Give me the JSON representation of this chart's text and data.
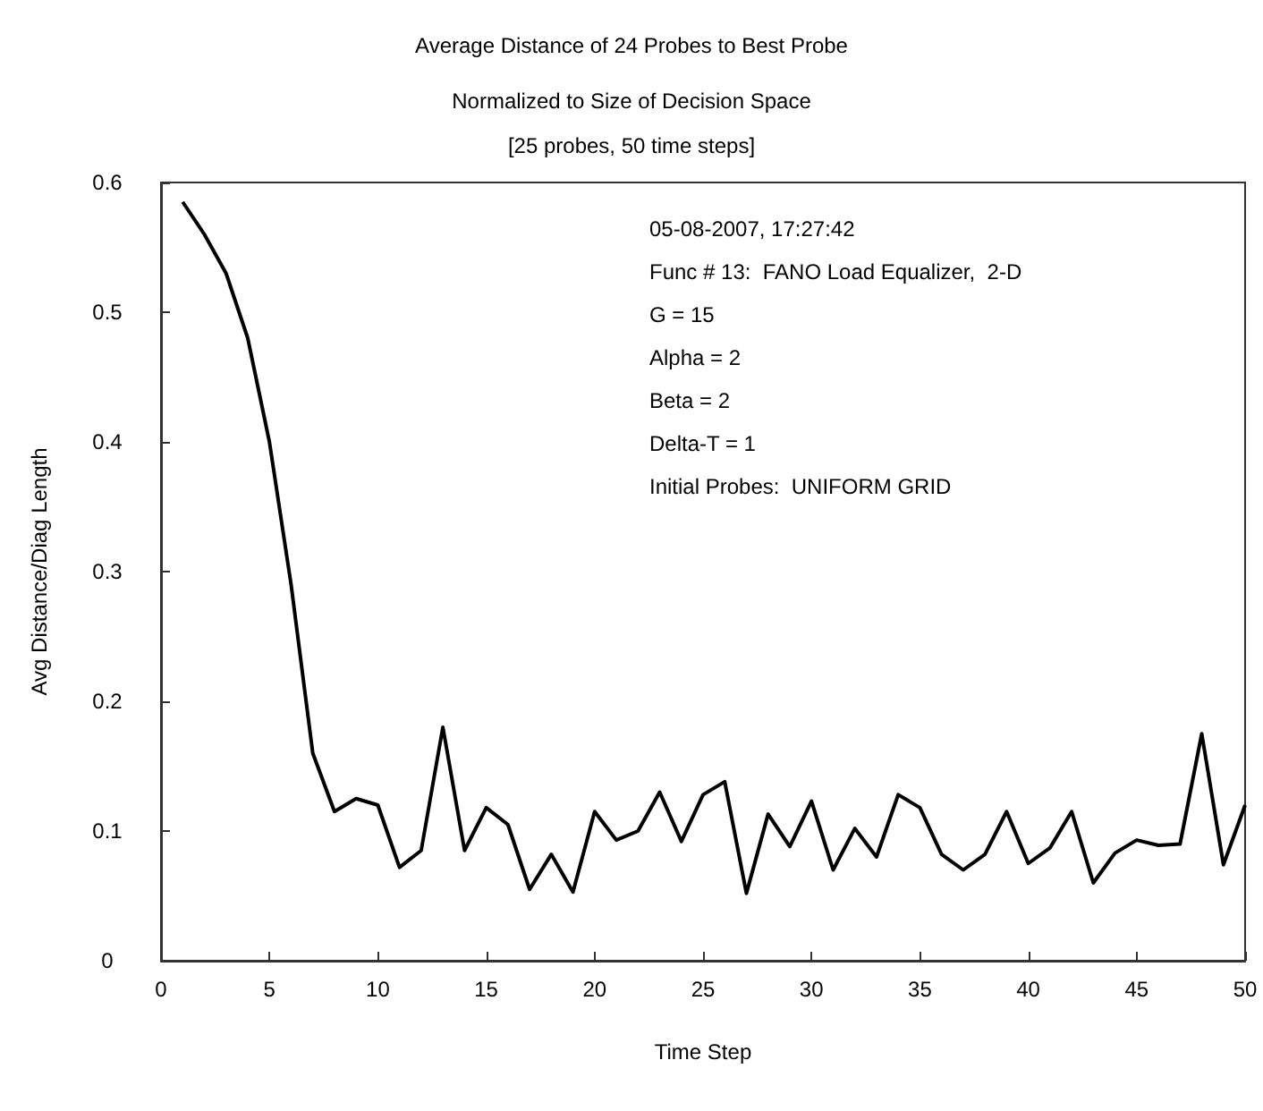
{
  "chart_data": {
    "type": "line",
    "title": "Average Distance of 24 Probes to Best Probe",
    "subtitle": "Normalized to Size of Decision Space\n[25 probes, 50 time steps]",
    "xlabel": "Time Step",
    "ylabel": "Avg Distance/Diag Length",
    "x": [
      1,
      2,
      3,
      4,
      5,
      6,
      7,
      8,
      9,
      10,
      11,
      12,
      13,
      14,
      15,
      16,
      17,
      18,
      19,
      20,
      21,
      22,
      23,
      24,
      25,
      26,
      27,
      28,
      29,
      30,
      31,
      32,
      33,
      34,
      35,
      36,
      37,
      38,
      39,
      40,
      41,
      42,
      43,
      44,
      45,
      46,
      47,
      48,
      49,
      50
    ],
    "series": [
      {
        "color": "#000000",
        "values": [
          0.585,
          0.56,
          0.53,
          0.48,
          0.4,
          0.29,
          0.16,
          0.115,
          0.125,
          0.12,
          0.072,
          0.085,
          0.18,
          0.085,
          0.118,
          0.105,
          0.055,
          0.082,
          0.053,
          0.115,
          0.093,
          0.1,
          0.13,
          0.092,
          0.128,
          0.138,
          0.052,
          0.113,
          0.088,
          0.123,
          0.07,
          0.102,
          0.08,
          0.128,
          0.118,
          0.082,
          0.07,
          0.082,
          0.115,
          0.075,
          0.087,
          0.115,
          0.06,
          0.083,
          0.093,
          0.089,
          0.09,
          0.175,
          0.074,
          0.12
        ]
      }
    ],
    "xlim": [
      0,
      50
    ],
    "xticks": [
      0,
      5,
      10,
      15,
      20,
      25,
      30,
      35,
      40,
      45,
      50
    ],
    "ylim": [
      0,
      0.6
    ],
    "yticks": [
      0,
      0.1,
      0.2,
      0.3,
      0.4,
      0.5,
      0.6
    ],
    "grid": false,
    "marker": "none",
    "line_style": "solid",
    "annotations": [
      "05-08-2007, 17:27:42",
      "Func # 13:  FANO Load Equalizer,  2-D",
      "G = 15",
      "Alpha = 2",
      "Beta = 2",
      "Delta-T = 1",
      "Initial Probes:  UNIFORM GRID"
    ]
  }
}
